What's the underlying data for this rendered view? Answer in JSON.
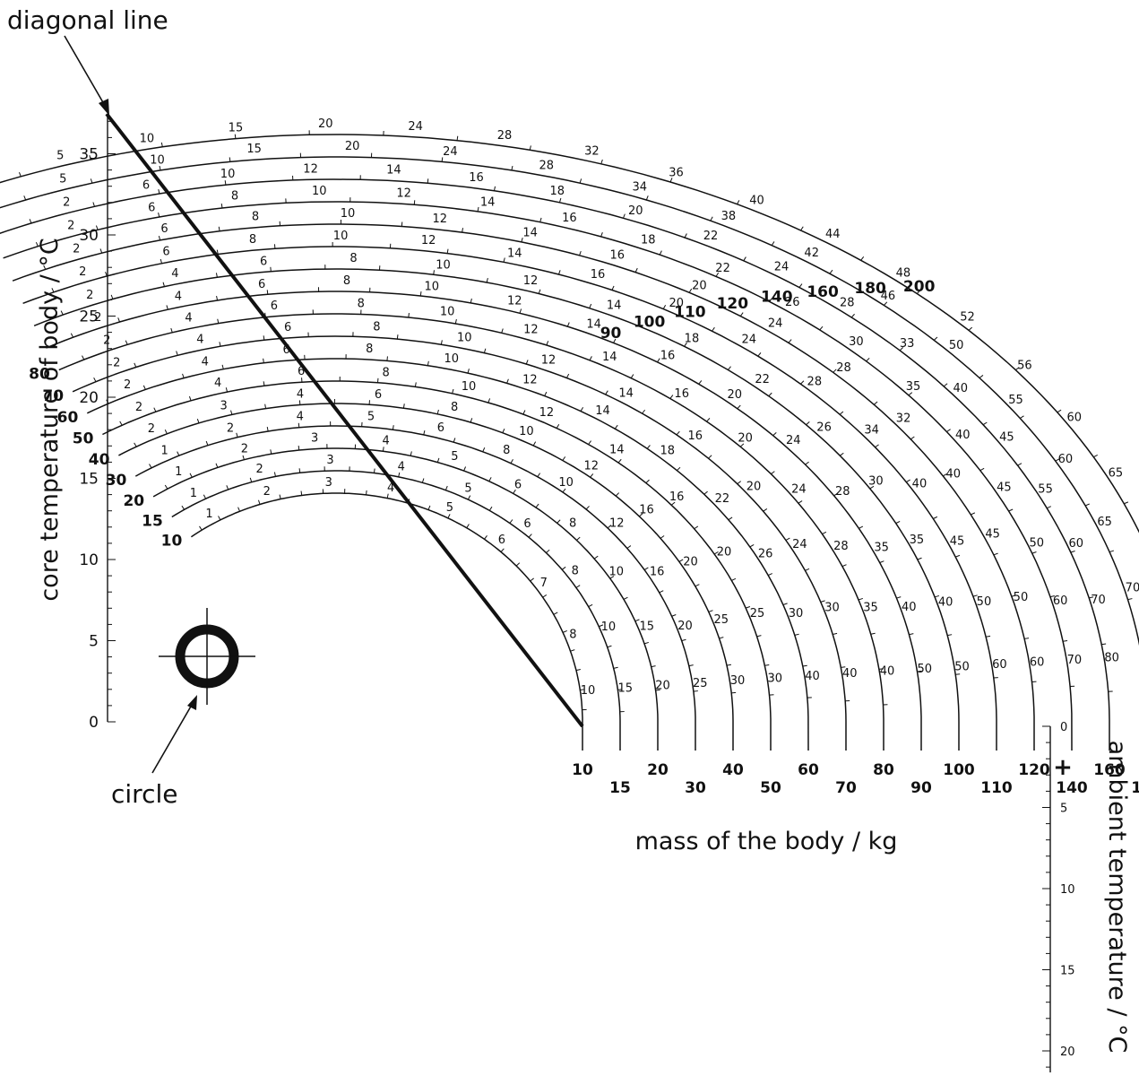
{
  "annotations": {
    "diagonal_line": "diagonal line",
    "circle": "circle"
  },
  "axes": {
    "core_temperature": {
      "label": "core temperature of body / °C",
      "ticks": [
        "0",
        "5",
        "10",
        "15",
        "20",
        "25",
        "30",
        "35"
      ]
    },
    "mass": {
      "label": "mass of the body / kg"
    },
    "ambient_temperature": {
      "label": "ambient temperature / °C",
      "ticks": [
        "0",
        "5",
        "10",
        "15",
        "20"
      ],
      "plus_marker": "+"
    }
  },
  "curves": [
    {
      "mass": "10",
      "left": "10",
      "right": "10",
      "dt": 0.0
    },
    {
      "mass": "15",
      "left": "15",
      "right": "15",
      "dt": 0.5
    },
    {
      "mass": "20",
      "left": "20",
      "right": "20",
      "dt": 1.0
    },
    {
      "mass": "30",
      "left": "30",
      "right": "30",
      "dt": 1.5
    },
    {
      "mass": "40",
      "left": "40",
      "right": "40",
      "dt": 2.0
    },
    {
      "mass": "50",
      "left": "50",
      "right": "50",
      "dt": 2.5
    },
    {
      "mass": "60",
      "left": "60",
      "right": "60",
      "dt": 3.0
    },
    {
      "mass": "70",
      "left": "70",
      "right": "70",
      "dt": 3.5
    },
    {
      "mass": "80",
      "left": "80",
      "right": "80",
      "dt": 4.0
    },
    {
      "mass": "90",
      "left": "",
      "right": "90",
      "dt": 4.5,
      "arc_label": "90"
    },
    {
      "mass": "100",
      "left": "",
      "right": "100",
      "dt": 5.0,
      "arc_label": "100"
    },
    {
      "mass": "110",
      "left": "",
      "right": "110",
      "dt": 5.5,
      "arc_label": "110"
    },
    {
      "mass": "120",
      "left": "",
      "right": "120",
      "dt": 6.0,
      "arc_label": "120"
    },
    {
      "mass": "140",
      "left": "",
      "right": "140",
      "dt": 6.5,
      "arc_label": "140"
    },
    {
      "mass": "160",
      "left": "",
      "right": "160",
      "dt": 7.0,
      "arc_label": "160"
    },
    {
      "mass": "180",
      "left": "",
      "right": "180",
      "dt": 7.5,
      "arc_label": "180"
    },
    {
      "mass": "200",
      "left": "",
      "right": "200",
      "dt": 8.0,
      "arc_label": "200"
    }
  ],
  "hour_labels": [
    [
      "1",
      "2",
      "3",
      "4",
      "5",
      "6",
      "7",
      "8",
      "10"
    ],
    [
      "1",
      "2",
      "3",
      "4",
      "5",
      "6",
      "8",
      "10",
      "15"
    ],
    [
      "1",
      "2",
      "3",
      "4",
      "5",
      "6",
      "8",
      "10",
      "15",
      "20"
    ],
    [
      "1",
      "2",
      "4",
      "5",
      "6",
      "8",
      "10",
      "12",
      "16",
      "20",
      "25"
    ],
    [
      "2",
      "3",
      "4",
      "6",
      "8",
      "10",
      "12",
      "16",
      "20",
      "25",
      "30"
    ],
    [
      "2",
      "4",
      "6",
      "8",
      "10",
      "12",
      "14",
      "16",
      "20",
      "25",
      "30"
    ],
    [
      "2",
      "4",
      "6",
      "8",
      "10",
      "12",
      "14",
      "18",
      "22",
      "26",
      "30",
      "40"
    ],
    [
      "2",
      "4",
      "6",
      "8",
      "10",
      "12",
      "14",
      "16",
      "20",
      "24",
      "30",
      "40"
    ],
    [
      "2",
      "4",
      "6",
      "8",
      "10",
      "12",
      "14",
      "16",
      "20",
      "24",
      "28",
      "35",
      "40"
    ],
    [
      "2",
      "4",
      "6",
      "8",
      "10",
      "12",
      "14",
      "16",
      "20",
      "24",
      "28",
      "35",
      "40",
      "50"
    ],
    [
      "2",
      "4",
      "6",
      "8",
      "10",
      "12",
      "14",
      "18",
      "22",
      "26",
      "30",
      "35",
      "40",
      "50"
    ],
    [
      "2",
      "6",
      "8",
      "10",
      "12",
      "14",
      "16",
      "20",
      "24",
      "28",
      "34",
      "40",
      "45",
      "50",
      "60"
    ],
    [
      "2",
      "6",
      "8",
      "10",
      "12",
      "14",
      "16",
      "20",
      "24",
      "28",
      "32",
      "40",
      "45",
      "50",
      "60"
    ],
    [
      "2",
      "6",
      "8",
      "10",
      "12",
      "14",
      "16",
      "18",
      "22",
      "26",
      "30",
      "35",
      "40",
      "45",
      "50",
      "60",
      "70"
    ],
    [
      "2",
      "6",
      "10",
      "12",
      "14",
      "16",
      "18",
      "20",
      "22",
      "24",
      "28",
      "33",
      "40",
      "45",
      "55",
      "60",
      "70",
      "80"
    ],
    [
      "5",
      "10",
      "15",
      "20",
      "24",
      "28",
      "34",
      "38",
      "42",
      "46",
      "50",
      "55",
      "60",
      "65",
      "70",
      "80"
    ],
    [
      "5",
      "10",
      "15",
      "20",
      "24",
      "28",
      "32",
      "36",
      "40",
      "44",
      "48",
      "52",
      "56",
      "60",
      "65",
      "70",
      "75",
      "80"
    ]
  ]
}
